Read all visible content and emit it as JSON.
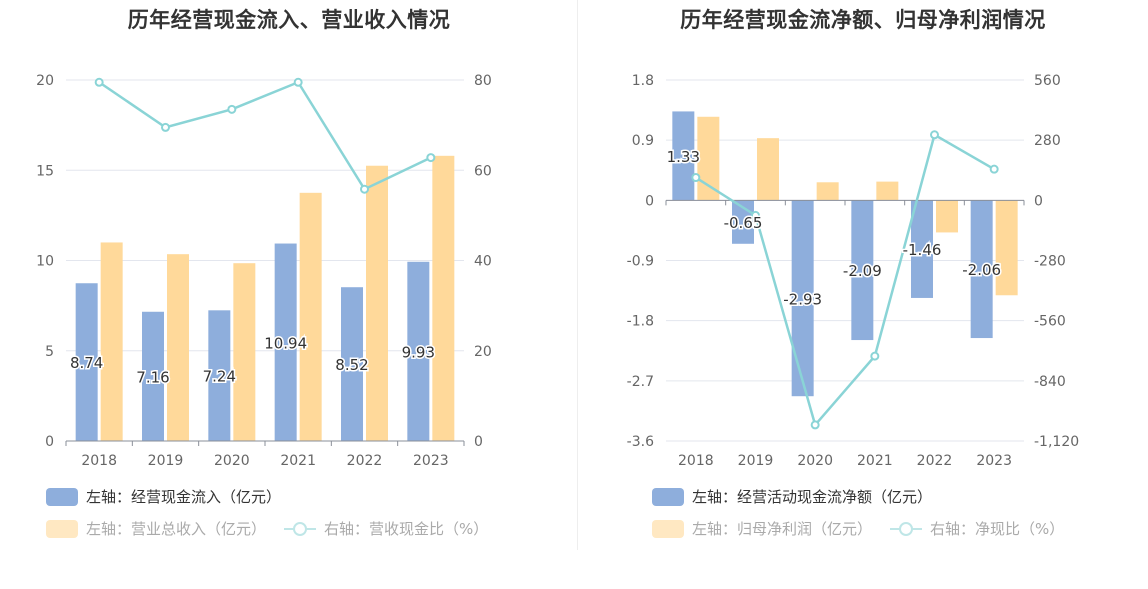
{
  "chart_data": [
    {
      "type": "bar+line",
      "title": "历年经营现金流入、营业收入情况",
      "categories": [
        "2018",
        "2019",
        "2020",
        "2021",
        "2022",
        "2023"
      ],
      "left_axis": {
        "min": 0,
        "max": 20,
        "ticks": [
          "0",
          "5",
          "10",
          "15",
          "20"
        ],
        "tick_values": [
          0,
          5,
          10,
          15,
          20
        ]
      },
      "right_axis": {
        "min": 0,
        "max": 80,
        "ticks": [
          "0",
          "20",
          "40",
          "60",
          "80"
        ],
        "tick_values": [
          0,
          20,
          40,
          60,
          80
        ]
      },
      "series": [
        {
          "name": "左轴：经营现金流入（亿元）",
          "kind": "bar",
          "axis": "left",
          "color": "#8eaedc",
          "values": [
            8.74,
            7.16,
            7.24,
            10.94,
            8.52,
            9.93
          ],
          "labels": [
            "8.74",
            "7.16",
            "7.24",
            "10.94",
            "8.52",
            "9.93"
          ]
        },
        {
          "name": "左轴：营业总收入（亿元）",
          "kind": "bar",
          "axis": "left",
          "color": "#ffd99a",
          "values": [
            11.0,
            10.35,
            9.85,
            13.75,
            15.25,
            15.8
          ]
        },
        {
          "name": "右轴：营收现金比（%）",
          "kind": "line",
          "axis": "right",
          "color": "#8ad4d6",
          "values": [
            79.5,
            69.5,
            73.5,
            79.5,
            55.8,
            62.8
          ]
        }
      ],
      "grid": true,
      "legend": "bottom"
    },
    {
      "type": "bar+line",
      "title": "历年经营现金流净额、归母净利润情况",
      "categories": [
        "2018",
        "2019",
        "2020",
        "2021",
        "2022",
        "2023"
      ],
      "left_axis": {
        "min": -3.6,
        "max": 1.8,
        "ticks": [
          "1.8",
          "0.9",
          "0",
          "-0.9",
          "-1.8",
          "-2.7",
          "-3.6"
        ],
        "tick_values": [
          1.8,
          0.9,
          0,
          -0.9,
          -1.8,
          -2.7,
          -3.6
        ]
      },
      "right_axis": {
        "min": -1120,
        "max": 560,
        "ticks": [
          "560",
          "280",
          "0",
          "-280",
          "-560",
          "-840",
          "-1,120"
        ],
        "tick_values": [
          560,
          280,
          0,
          -280,
          -560,
          -840,
          -1120
        ]
      },
      "series": [
        {
          "name": "左轴：经营活动现金流净额（亿元）",
          "kind": "bar",
          "axis": "left",
          "color": "#8eaedc",
          "values": [
            1.33,
            -0.65,
            -2.93,
            -2.09,
            -1.46,
            -2.06
          ],
          "labels": [
            "1.33",
            "-0.65",
            "-2.93",
            "-2.09",
            "-1.46",
            "-2.06"
          ]
        },
        {
          "name": "左轴：归母净利润（亿元）",
          "kind": "bar",
          "axis": "left",
          "color": "#ffd99a",
          "values": [
            1.25,
            0.93,
            0.27,
            0.28,
            -0.48,
            -1.42
          ]
        },
        {
          "name": "右轴：净现比（%）",
          "kind": "line",
          "axis": "right",
          "color": "#8ad4d6",
          "values": [
            106,
            -70,
            -1045,
            -725,
            305,
            145
          ]
        }
      ],
      "grid": true,
      "legend": "bottom"
    }
  ]
}
